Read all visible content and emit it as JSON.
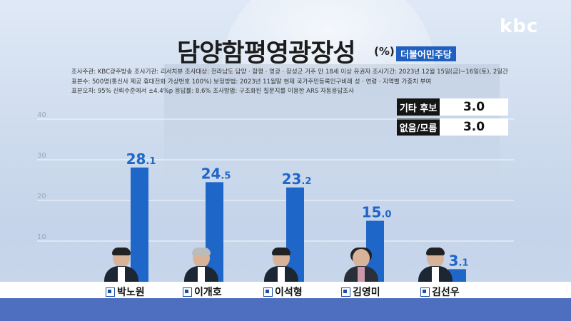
{
  "brand": "kbc",
  "header": {
    "title": "담양함평영광장성",
    "unit": "(%)",
    "region_badge": "더불어민주당"
  },
  "survey_info": {
    "line1": "조사주관: KBC광주방송   조사기관: 리서치뷰   조사대상: 전라남도 담양 · 함평 · 영광 · 장성군 거주 만 18세 이상 유권자   조사기간: 2023년 12월 15일(금)~16일(토), 2일간",
    "line2": "표본수: 500명(통신사 제공 휴대전화 가상번호 100%)   보정방법: 2023년 11월말 현재 국가주민등록인구비례 성 · 연령 · 지역별 가중치 부여",
    "line3": "표본오차: 95% 신뢰수준에서 ±4.4%p    응답률: 8.6%    조사방법: 구조화된 질문지를 이용한 ARS 자동응답조사"
  },
  "other_results": [
    {
      "label": "기타 후보",
      "value": "3.0"
    },
    {
      "label": "없음/모름",
      "value": "3.0"
    }
  ],
  "colors": {
    "bar": "#1f66c9",
    "accent": "#1f5fbf"
  },
  "chart_data": {
    "type": "bar",
    "categories": [
      "박노원",
      "이개호",
      "이석형",
      "김영미",
      "김선우"
    ],
    "values": [
      28.1,
      24.5,
      23.2,
      15.0,
      3.1
    ],
    "value_labels": [
      "28.1",
      "24.5",
      "23.2",
      "15.0",
      "3.1"
    ],
    "yticks": [
      10,
      20,
      30,
      40
    ],
    "ylim": [
      0,
      40
    ],
    "grid": true,
    "legend": "none"
  }
}
